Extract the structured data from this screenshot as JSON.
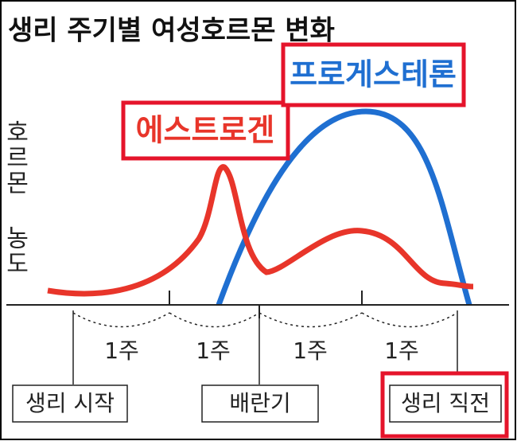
{
  "title": "생리 주기별 여성호르몬 변화",
  "y_axis_label": "호르몬 농도",
  "curves": [
    {
      "label": "에스트로겐"
    },
    {
      "label": "프로게스테론"
    }
  ],
  "weeks": [
    "1주",
    "1주",
    "1주",
    "1주"
  ],
  "phases": [
    "생리 시작",
    "배란기",
    "생리 직전"
  ]
}
